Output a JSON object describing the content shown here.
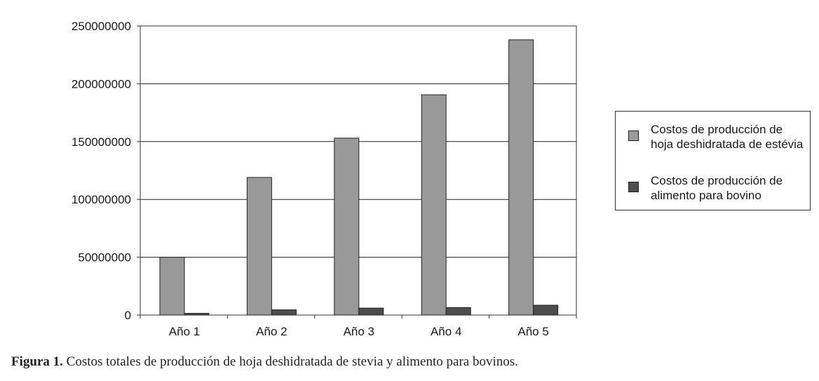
{
  "chart_data": {
    "type": "bar",
    "categories": [
      "Año 1",
      "Año 2",
      "Año 3",
      "Año 4",
      "Año 5"
    ],
    "series": [
      {
        "name": "Costos de producción de hoja deshidratada de estévia",
        "color": "#999999",
        "values": [
          50000000,
          119000000,
          153000000,
          190500000,
          238000000
        ]
      },
      {
        "name": "Costos de producción de alimento para bovino",
        "color": "#4d4d4d",
        "values": [
          1500000,
          4500000,
          6000000,
          6500000,
          8500000
        ]
      }
    ],
    "y_ticks": [
      "0",
      "50000000",
      "100000000",
      "150000000",
      "200000000",
      "250000000"
    ],
    "ylim": [
      0,
      250000000
    ],
    "grid": "horizontal",
    "legend_position": "right"
  },
  "caption": {
    "lead": "Figura 1.",
    "text": "Costos totales de producción de hoja deshidratada de stevia y alimento para bovinos."
  }
}
